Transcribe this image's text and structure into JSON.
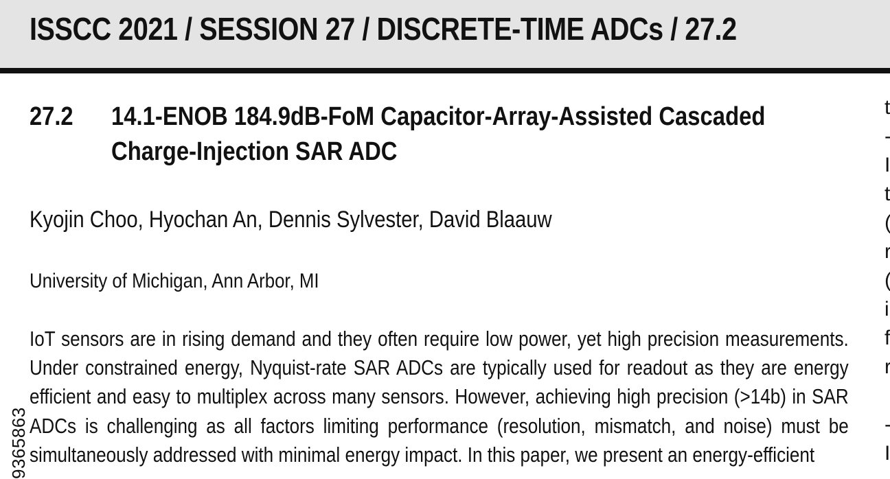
{
  "header": {
    "title": "ISSCC 2021 / SESSION 27 / DISCRETE-TIME ADCs / 27.2"
  },
  "paper": {
    "number": "27.2",
    "title": "14.1-ENOB 184.9dB-FoM Capacitor-Array-Assisted Cascaded Charge-Injection SAR ADC",
    "authors": "Kyojin Choo, Hyochan An, Dennis Sylvester, David Blaauw",
    "affiliation": "University of Michigan, Ann Arbor, MI",
    "abstract": "IoT sensors are in rising demand and they often require low power, yet high precision measurements. Under constrained energy, Nyquist-rate SAR ADCs are typically used for readout as they are energy efficient and easy to multiplex across many sensors. However, achieving high precision (>14b) in SAR ADCs is challenging as all factors limiting performance (resolution, mismatch, and noise) must be simultaneously addressed with minimal energy impact. In this paper, we present an energy-efficient"
  },
  "margin": {
    "side_id": "9365863"
  },
  "right_column": {
    "line_fragments": [
      "t",
      "-",
      "I",
      "t",
      "(",
      "r",
      "(",
      "i",
      "f",
      "r",
      "",
      "-",
      "I"
    ]
  }
}
